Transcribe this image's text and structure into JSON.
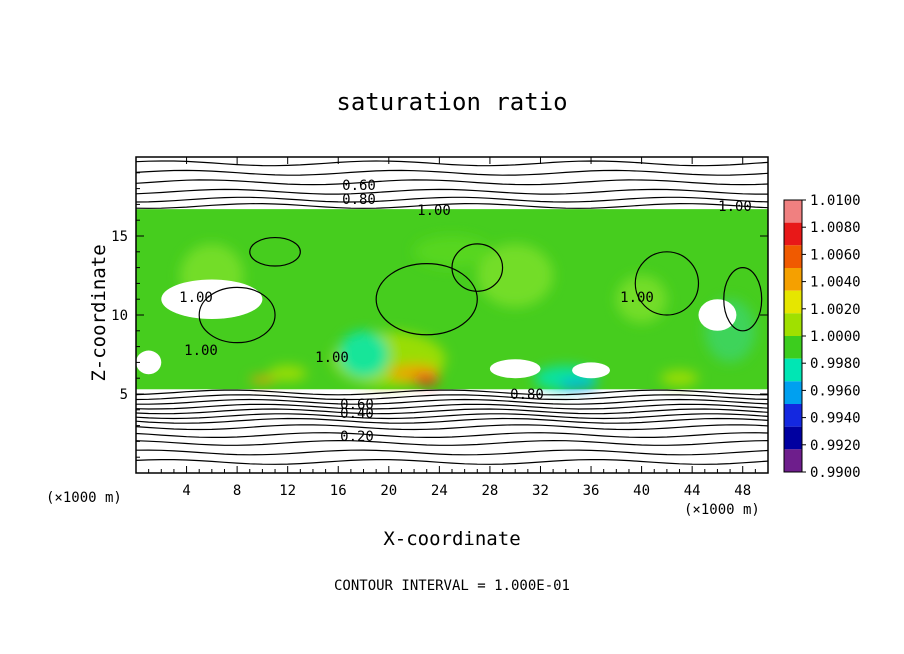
{
  "chart_data": {
    "type": "heatmap",
    "title": "saturation ratio",
    "xlabel": "X-coordinate",
    "ylabel": "Z-coordinate",
    "x_unit_label": "(×1000 m)",
    "x_unit_label_right": "(×1000 m)",
    "xlim": [
      0,
      50
    ],
    "ylim": [
      0,
      20
    ],
    "x_ticks": [
      4,
      8,
      12,
      16,
      20,
      24,
      28,
      32,
      36,
      40,
      44,
      48
    ],
    "y_ticks": [
      5,
      10,
      15
    ],
    "footer": "CONTOUR INTERVAL = 1.000E-01",
    "cloud_layer": {
      "z_bottom": 5.3,
      "z_top": 16.7,
      "base_value": 1.0,
      "x_start": 0,
      "x_end": 50
    },
    "contour_labels": [
      "0.60",
      "0.80",
      "1.00",
      "1.00",
      "1.00",
      "1.00",
      "1.00",
      "1.00",
      "0.60",
      "0.40",
      "0.20",
      "0.80"
    ],
    "colorbar": {
      "levels": [
        "1.0100",
        "1.0080",
        "1.0060",
        "1.0040",
        "1.0020",
        "1.0000",
        "0.9980",
        "0.9960",
        "0.9940",
        "0.9920",
        "0.9900"
      ],
      "colors": [
        "#f08080",
        "#e81818",
        "#f05a00",
        "#f5a000",
        "#e6e600",
        "#a0e000",
        "#3ccd1e",
        "#00e6b4",
        "#00a0f0",
        "#1428e0",
        "#0000a0",
        "#6e1e8c"
      ]
    }
  }
}
